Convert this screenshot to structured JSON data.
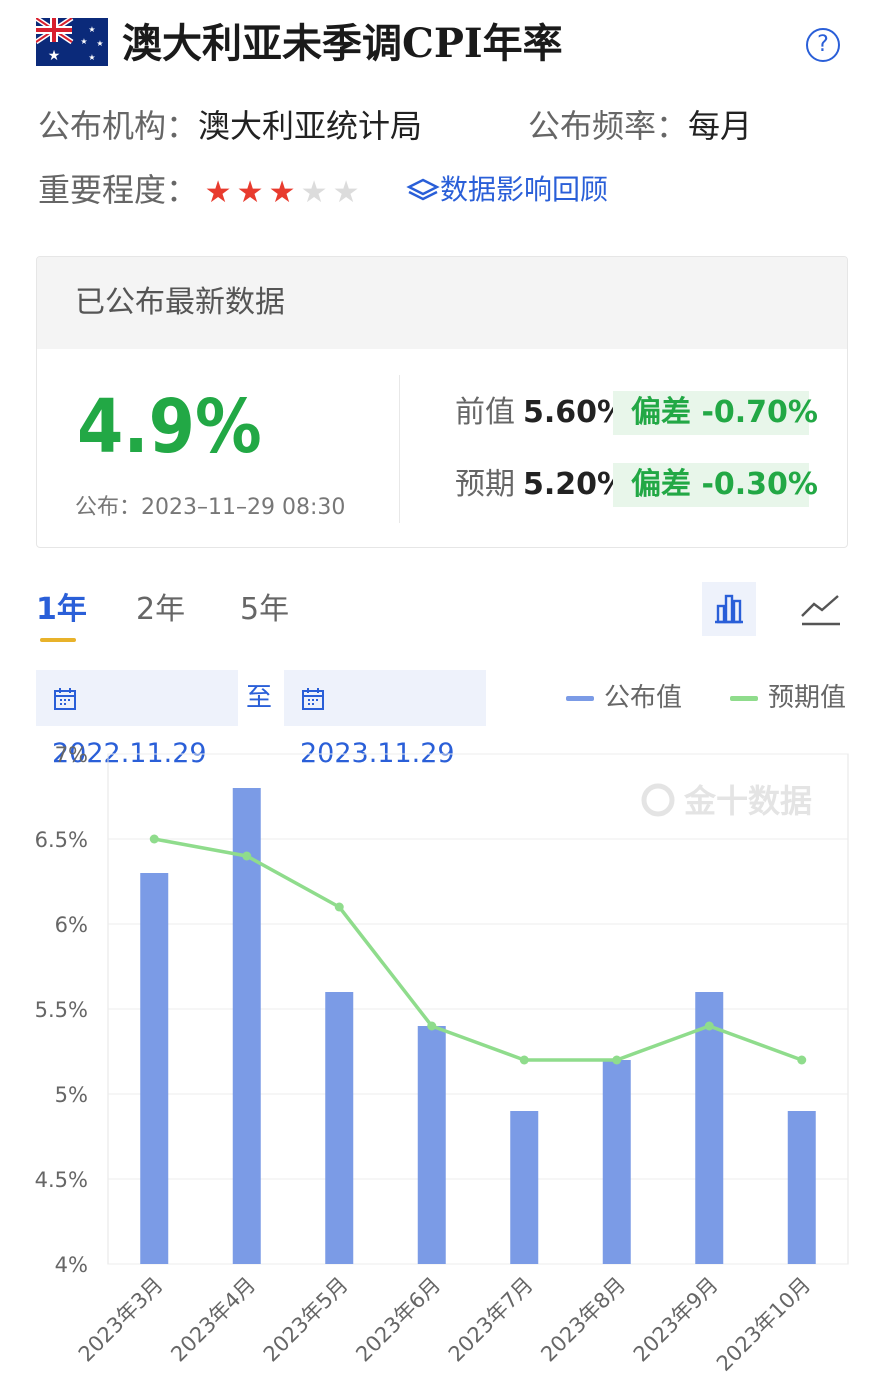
{
  "header": {
    "title": "澳大利亚未季调CPI年率",
    "help_glyph": "?"
  },
  "meta": {
    "publisher_label": "公布机构：",
    "publisher": "澳大利亚统计局",
    "frequency_label": "公布频率：",
    "frequency": "每月",
    "importance_label": "重要程度：",
    "importance_stars": 3,
    "importance_max": 5,
    "review_link": "数据影响回顾"
  },
  "latest": {
    "heading": "已公布最新数据",
    "value": "4.9%",
    "published": "公布：2023–11–29 08:30",
    "previous_label": "前值",
    "previous": "5.60%",
    "previous_dev": "偏差  -0.70%",
    "forecast_label": "预期",
    "forecast": "5.20%",
    "forecast_dev": "偏差  -0.30%",
    "value_color": "#22a845"
  },
  "tabs": [
    {
      "label": "1年",
      "active": true
    },
    {
      "label": "2年",
      "active": false
    },
    {
      "label": "5年",
      "active": false
    }
  ],
  "range": {
    "start": "2022.11.29",
    "sep": "至",
    "end": "2023.11.29"
  },
  "legend": {
    "actual": "公布值",
    "forecast": "预期值",
    "actual_color": "#7b9be6",
    "forecast_color": "#8fdc8c"
  },
  "watermark": "金十数据",
  "chart_data": {
    "type": "bar",
    "categories": [
      "2023年3月",
      "2023年4月",
      "2023年5月",
      "2023年6月",
      "2023年7月",
      "2023年8月",
      "2023年9月",
      "2023年10月"
    ],
    "series": [
      {
        "name": "公布值",
        "type": "bar",
        "values": [
          6.3,
          6.8,
          5.6,
          5.4,
          4.9,
          5.2,
          5.6,
          4.9
        ]
      },
      {
        "name": "预期值",
        "type": "line",
        "values": [
          6.5,
          6.4,
          6.1,
          5.4,
          5.2,
          5.2,
          5.4,
          5.2
        ]
      }
    ],
    "yticks": [
      "7%",
      "6.5%",
      "6%",
      "5.5%",
      "5%",
      "4.5%",
      "4%"
    ],
    "ylim": [
      4,
      7
    ],
    "grid": true
  }
}
